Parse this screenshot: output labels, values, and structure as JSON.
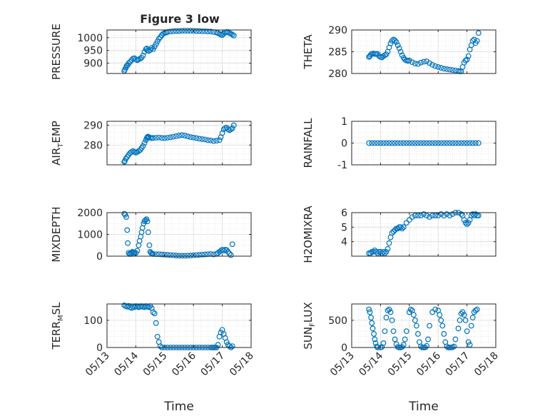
{
  "figure": {
    "title": "Figure 3 low",
    "marker_color": "#0072BD"
  },
  "chart_data": [
    {
      "type": "scatter",
      "id": "pressure",
      "ylabel": "PRESSURE",
      "ylim": [
        860,
        1030
      ],
      "yticks": [
        900,
        950,
        1000
      ],
      "xlim": [
        0,
        5
      ],
      "x": [
        0.6,
        0.62,
        0.65,
        0.68,
        0.72,
        0.75,
        0.8,
        0.85,
        0.9,
        0.95,
        1.0,
        1.05,
        1.1,
        1.15,
        1.2,
        1.25,
        1.3,
        1.35,
        1.38,
        1.4,
        1.45,
        1.5,
        1.55,
        1.6,
        1.65,
        1.7,
        1.75,
        1.8,
        1.85,
        1.9,
        1.95,
        2.0,
        2.05,
        2.1,
        2.2,
        2.3,
        2.4,
        2.5,
        2.6,
        2.7,
        2.8,
        2.9,
        3.0,
        3.1,
        3.2,
        3.3,
        3.4,
        3.5,
        3.6,
        3.7,
        3.8,
        3.85,
        3.9,
        3.95,
        4.0,
        4.05,
        4.1,
        4.15,
        4.2,
        4.25,
        4.3,
        4.35,
        4.4
      ],
      "y": [
        870,
        875,
        882,
        890,
        893,
        900,
        905,
        912,
        918,
        920,
        915,
        912,
        915,
        918,
        922,
        930,
        945,
        955,
        958,
        950,
        948,
        952,
        960,
        955,
        965,
        975,
        985,
        995,
        1002,
        1010,
        1015,
        1018,
        1020,
        1022,
        1024,
        1025,
        1026,
        1026,
        1027,
        1027,
        1027,
        1027,
        1027,
        1026,
        1026,
        1025,
        1025,
        1024,
        1024,
        1022,
        1020,
        1018,
        1015,
        1012,
        1010,
        1015,
        1020,
        1022,
        1022,
        1018,
        1015,
        1012,
        1008
      ]
    },
    {
      "type": "scatter",
      "id": "theta",
      "ylabel": "THETA",
      "ylim": [
        280,
        290
      ],
      "yticks": [
        280,
        285,
        290
      ],
      "xlim": [
        0,
        5
      ],
      "x": [
        0.6,
        0.63,
        0.66,
        0.7,
        0.75,
        0.8,
        0.85,
        0.9,
        0.95,
        1.0,
        1.05,
        1.1,
        1.15,
        1.2,
        1.25,
        1.3,
        1.35,
        1.4,
        1.45,
        1.5,
        1.55,
        1.6,
        1.65,
        1.7,
        1.75,
        1.8,
        1.85,
        1.9,
        1.95,
        2.0,
        2.1,
        2.2,
        2.3,
        2.4,
        2.5,
        2.6,
        2.7,
        2.8,
        2.9,
        3.0,
        3.1,
        3.2,
        3.3,
        3.4,
        3.5,
        3.6,
        3.7,
        3.75,
        3.8,
        3.85,
        3.9,
        3.95,
        4.0,
        4.05,
        4.1,
        4.15,
        4.2,
        4.25,
        4.3,
        4.35,
        4.4
      ],
      "y": [
        283.8,
        284.0,
        284.3,
        284.5,
        284.6,
        284.5,
        284.5,
        284.5,
        284.0,
        283.8,
        283.7,
        284.0,
        284.2,
        284.4,
        285.0,
        286.0,
        286.9,
        287.5,
        287.8,
        287.6,
        287.2,
        286.5,
        285.8,
        285.0,
        284.2,
        283.6,
        283.2,
        283.0,
        282.9,
        283.0,
        282.6,
        282.3,
        282.2,
        282.5,
        282.7,
        282.8,
        282.4,
        282.0,
        281.7,
        281.5,
        281.3,
        281.1,
        281.0,
        280.9,
        280.8,
        280.7,
        280.6,
        280.5,
        280.5,
        281.5,
        282.5,
        283.0,
        283.2,
        284.0,
        285.5,
        286.5,
        287.5,
        287.8,
        287.0,
        287.5,
        289.3
      ]
    },
    {
      "type": "scatter",
      "id": "air_temp",
      "ylabel": "AIR",
      "ylabel_sub": "T",
      "ylabel_rest": "EMP",
      "ylim": [
        270,
        292
      ],
      "yticks": [
        280,
        290
      ],
      "xlim": [
        0,
        5
      ],
      "x": [
        0.6,
        0.62,
        0.65,
        0.7,
        0.75,
        0.8,
        0.85,
        0.9,
        0.95,
        1.0,
        1.05,
        1.1,
        1.15,
        1.2,
        1.25,
        1.3,
        1.35,
        1.38,
        1.4,
        1.42,
        1.45,
        1.5,
        1.55,
        1.6,
        1.7,
        1.8,
        1.9,
        2.0,
        2.1,
        2.2,
        2.3,
        2.4,
        2.5,
        2.6,
        2.7,
        2.8,
        2.9,
        3.0,
        3.1,
        3.2,
        3.3,
        3.4,
        3.5,
        3.6,
        3.7,
        3.8,
        3.9,
        3.95,
        4.0,
        4.05,
        4.1,
        4.15,
        4.2,
        4.25,
        4.3,
        4.35,
        4.4
      ],
      "y": [
        271.5,
        272.0,
        273.0,
        274.0,
        275.0,
        276.0,
        276.5,
        277.0,
        276.5,
        276.2,
        276.5,
        277.0,
        277.5,
        278.5,
        279.5,
        281.0,
        282.5,
        283.5,
        284.0,
        284.3,
        284.0,
        283.7,
        283.5,
        283.6,
        283.7,
        283.8,
        283.6,
        283.5,
        283.7,
        283.9,
        284.2,
        284.5,
        284.8,
        285.0,
        284.8,
        284.4,
        284.0,
        283.8,
        283.5,
        283.2,
        283.0,
        282.8,
        282.5,
        282.3,
        282.0,
        282.2,
        282.5,
        284.0,
        286.0,
        288.0,
        288.5,
        288.8,
        288.0,
        287.5,
        288.0,
        288.5,
        290.0
      ]
    },
    {
      "type": "scatter",
      "id": "rainfall",
      "ylabel": "RAINFALL",
      "ylim": [
        -1,
        1
      ],
      "yticks": [
        -1,
        0,
        1
      ],
      "xlim": [
        0,
        5
      ],
      "x": [
        0.6,
        0.7,
        0.8,
        0.9,
        1.0,
        1.1,
        1.2,
        1.3,
        1.4,
        1.5,
        1.6,
        1.7,
        1.8,
        1.9,
        2.0,
        2.1,
        2.2,
        2.3,
        2.4,
        2.5,
        2.6,
        2.7,
        2.8,
        2.9,
        3.0,
        3.1,
        3.2,
        3.3,
        3.4,
        3.5,
        3.6,
        3.7,
        3.8,
        3.9,
        4.0,
        4.1,
        4.2,
        4.3,
        4.4
      ],
      "y": [
        0,
        0,
        0,
        0,
        0,
        0,
        0,
        0,
        0,
        0,
        0,
        0,
        0,
        0,
        0,
        0,
        0,
        0,
        0,
        0,
        0,
        0,
        0,
        0,
        0,
        0,
        0,
        0,
        0,
        0,
        0,
        0,
        0,
        0,
        0,
        0,
        0,
        0,
        0
      ]
    },
    {
      "type": "scatter",
      "id": "mixdepth",
      "ylabel": "MIXDEPTH",
      "ylim": [
        0,
        2000
      ],
      "yticks": [
        0,
        1000,
        2000
      ],
      "xlim": [
        0,
        5
      ],
      "x": [
        0.6,
        0.63,
        0.67,
        0.7,
        0.72,
        0.75,
        0.78,
        0.82,
        0.85,
        0.88,
        0.92,
        0.95,
        1.0,
        1.05,
        1.1,
        1.13,
        1.17,
        1.2,
        1.23,
        1.27,
        1.3,
        1.33,
        1.37,
        1.4,
        1.43,
        1.47,
        1.5,
        1.53,
        1.57,
        1.6,
        1.7,
        1.8,
        1.9,
        2.0,
        2.1,
        2.2,
        2.3,
        2.4,
        2.5,
        2.6,
        2.7,
        2.8,
        2.9,
        3.0,
        3.1,
        3.2,
        3.3,
        3.4,
        3.5,
        3.6,
        3.7,
        3.8,
        3.85,
        3.9,
        3.95,
        4.0,
        4.05,
        4.1,
        4.15,
        4.2,
        4.25,
        4.3,
        4.35
      ],
      "y": [
        1950,
        1900,
        1800,
        1200,
        600,
        150,
        100,
        100,
        150,
        200,
        180,
        150,
        150,
        250,
        500,
        700,
        900,
        1100,
        1300,
        1500,
        1600,
        1650,
        1700,
        1600,
        1100,
        500,
        200,
        150,
        120,
        100,
        90,
        90,
        80,
        70,
        60,
        50,
        40,
        30,
        20,
        20,
        20,
        25,
        30,
        40,
        50,
        60,
        70,
        80,
        90,
        100,
        80,
        100,
        150,
        200,
        250,
        300,
        250,
        300,
        280,
        200,
        120,
        50,
        550
      ]
    },
    {
      "type": "scatter",
      "id": "h2omixra",
      "ylabel": "H2OMIXRA",
      "ylim": [
        3,
        6
      ],
      "yticks": [
        4,
        5,
        6
      ],
      "xlim": [
        0,
        5
      ],
      "x": [
        0.6,
        0.65,
        0.7,
        0.75,
        0.8,
        0.85,
        0.9,
        0.95,
        1.0,
        1.05,
        1.1,
        1.15,
        1.2,
        1.25,
        1.3,
        1.35,
        1.4,
        1.45,
        1.5,
        1.55,
        1.6,
        1.65,
        1.7,
        1.75,
        1.8,
        1.9,
        2.0,
        2.1,
        2.2,
        2.3,
        2.4,
        2.5,
        2.6,
        2.7,
        2.8,
        2.9,
        3.0,
        3.1,
        3.2,
        3.3,
        3.4,
        3.5,
        3.6,
        3.7,
        3.8,
        3.85,
        3.9,
        3.95,
        4.0,
        4.05,
        4.1,
        4.15,
        4.2,
        4.25,
        4.3,
        4.35,
        4.4
      ],
      "y": [
        3.2,
        3.2,
        3.3,
        3.3,
        3.4,
        3.3,
        3.2,
        3.3,
        3.3,
        3.2,
        3.3,
        3.2,
        3.3,
        3.5,
        3.9,
        4.3,
        4.6,
        4.7,
        4.8,
        4.9,
        4.9,
        5.0,
        5.0,
        4.9,
        5.0,
        5.3,
        5.5,
        5.7,
        5.8,
        5.8,
        5.8,
        5.9,
        5.8,
        5.7,
        5.8,
        5.8,
        5.8,
        5.9,
        5.8,
        5.9,
        5.8,
        5.9,
        6.0,
        6.0,
        5.9,
        5.8,
        5.5,
        5.3,
        5.2,
        5.3,
        5.5,
        5.8,
        5.9,
        5.8,
        5.9,
        5.8,
        5.8
      ]
    },
    {
      "type": "scatter",
      "id": "terr_msl",
      "ylabel": "TERR",
      "ylabel_sub": "M",
      "ylabel_rest": "SL",
      "ylim": [
        0,
        160
      ],
      "yticks": [
        0,
        100
      ],
      "xlim": [
        0,
        5
      ],
      "x": [
        0.6,
        0.65,
        0.7,
        0.75,
        0.8,
        0.85,
        0.9,
        0.95,
        1.0,
        1.05,
        1.1,
        1.15,
        1.2,
        1.25,
        1.3,
        1.35,
        1.4,
        1.45,
        1.5,
        1.55,
        1.6,
        1.65,
        1.7,
        1.75,
        1.8,
        1.85,
        1.9,
        2.0,
        2.1,
        2.2,
        2.3,
        2.4,
        2.5,
        2.6,
        2.7,
        2.8,
        2.9,
        3.0,
        3.1,
        3.2,
        3.3,
        3.4,
        3.5,
        3.6,
        3.65,
        3.7,
        3.75,
        3.8,
        3.85,
        3.9,
        3.95,
        4.0,
        4.05,
        4.1,
        4.15,
        4.2,
        4.25,
        4.3,
        4.35
      ],
      "y": [
        155,
        152,
        150,
        153,
        148,
        145,
        150,
        148,
        152,
        150,
        148,
        150,
        152,
        150,
        148,
        152,
        150,
        148,
        152,
        145,
        130,
        125,
        90,
        40,
        20,
        5,
        0,
        0,
        0,
        0,
        0,
        0,
        0,
        0,
        0,
        0,
        0,
        0,
        0,
        0,
        0,
        0,
        0,
        0,
        0,
        0,
        0,
        0,
        10,
        40,
        55,
        65,
        50,
        35,
        20,
        10,
        5,
        0,
        5
      ]
    },
    {
      "type": "scatter",
      "id": "sun_flux",
      "ylabel": "SUN",
      "ylabel_sub": "F",
      "ylabel_rest": "LUX",
      "ylim": [
        0,
        800
      ],
      "yticks": [
        0,
        500
      ],
      "xlim": [
        0,
        5
      ],
      "x": [
        0.6,
        0.63,
        0.67,
        0.7,
        0.73,
        0.77,
        0.8,
        0.83,
        0.87,
        0.9,
        1.0,
        1.05,
        1.1,
        1.15,
        1.2,
        1.25,
        1.3,
        1.35,
        1.4,
        1.45,
        1.5,
        1.55,
        1.6,
        1.65,
        1.7,
        1.75,
        1.8,
        1.85,
        1.9,
        2.0,
        2.05,
        2.1,
        2.15,
        2.2,
        2.25,
        2.3,
        2.35,
        2.4,
        2.45,
        2.5,
        2.55,
        2.6,
        2.65,
        2.7,
        2.8,
        2.9,
        3.0,
        3.05,
        3.1,
        3.15,
        3.2,
        3.25,
        3.3,
        3.35,
        3.4,
        3.45,
        3.5,
        3.55,
        3.6,
        3.7,
        3.75,
        3.8,
        3.85,
        3.9,
        3.95,
        4.0,
        4.05,
        4.1,
        4.15,
        4.2,
        4.25,
        4.3,
        4.35
      ],
      "y": [
        700,
        650,
        550,
        450,
        350,
        250,
        150,
        80,
        20,
        0,
        0,
        10,
        80,
        300,
        550,
        680,
        700,
        650,
        500,
        300,
        150,
        60,
        10,
        0,
        0,
        10,
        50,
        150,
        300,
        650,
        700,
        680,
        600,
        500,
        400,
        250,
        100,
        20,
        0,
        0,
        0,
        30,
        150,
        400,
        650,
        700,
        680,
        600,
        500,
        400,
        250,
        100,
        20,
        0,
        0,
        0,
        5,
        20,
        150,
        350,
        500,
        620,
        650,
        600,
        500,
        300,
        100,
        50,
        400,
        550,
        650,
        680,
        700
      ]
    }
  ],
  "x_axis": {
    "ticks": [
      "05/13",
      "05/14",
      "05/15",
      "05/16",
      "05/17",
      "05/18"
    ],
    "label": "Time"
  }
}
